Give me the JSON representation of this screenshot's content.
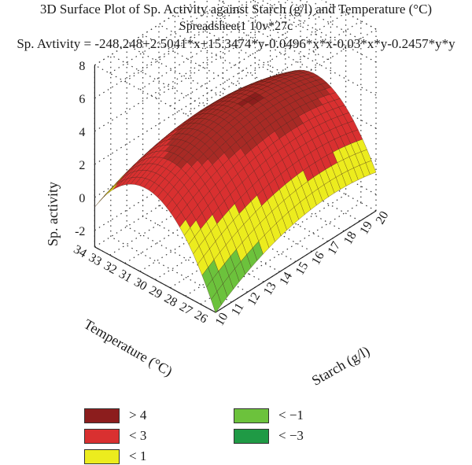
{
  "chart_data": {
    "type": "surface",
    "title": "3D Surface Plot of Sp. Activity against Starch (g/l) and Temperature (°C)",
    "subtitle": "Spreadsheet1 10v*27c",
    "equation": "Sp. Avtivity = -248.248+2.5041*x+15.3474*y-0.0496*x*x-0.03*x*y-0.2457*y*y",
    "coefficients": {
      "c0": -248.248,
      "x": 2.5041,
      "y": 15.3474,
      "xx": -0.0496,
      "xy": -0.03,
      "yy": -0.2457
    },
    "xlabel": "Starch (g/l)",
    "ylabel": "Temperature (°C)",
    "zlabel": "Sp. activity",
    "xlim": [
      10,
      20
    ],
    "ylim": [
      26,
      34
    ],
    "zlim": [
      -3,
      8
    ],
    "x_ticks": [
      "10",
      "11",
      "12",
      "13",
      "14",
      "15",
      "16",
      "17",
      "18",
      "19",
      "20"
    ],
    "y_ticks": [
      "26",
      "27",
      "28",
      "29",
      "30",
      "31",
      "32",
      "33",
      "34"
    ],
    "z_ticks": [
      "8",
      "6",
      "4",
      "2",
      "0",
      "-2"
    ],
    "z_tick_values": [
      8,
      6,
      4,
      2,
      0,
      -2
    ],
    "legend": [
      {
        "label": "> 4",
        "color": "#8c1d1d"
      },
      {
        "label": "< 3",
        "color": "#d93030"
      },
      {
        "label": "< 1",
        "color": "#ecec1e"
      },
      {
        "label": "< −1",
        "color": "#6cc23c"
      },
      {
        "label": "< −3",
        "color": "#1f9a45"
      }
    ]
  }
}
